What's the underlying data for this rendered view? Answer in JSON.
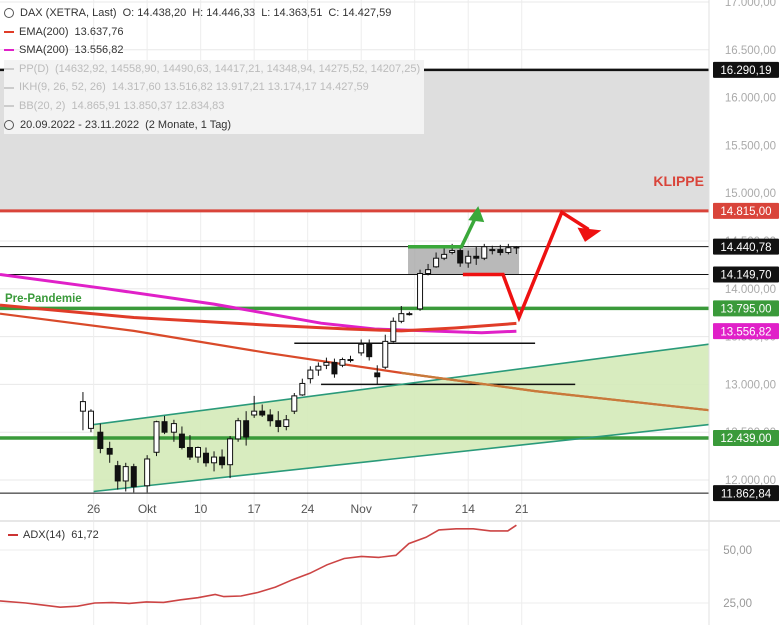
{
  "header": {
    "instrument": "DAX (XETRA, Last)",
    "open": "O: 14.438,20",
    "high": "H: 14.446,33",
    "low": "L: 14.363,51",
    "close": "C: 14.427,59"
  },
  "legend": [
    {
      "label": "EMA(200)",
      "value": "13.637,76",
      "color": "#e03c28",
      "faded": false
    },
    {
      "label": "SMA(200)",
      "value": "13.556,82",
      "color": "#e020c8",
      "faded": false
    },
    {
      "label": "PP(D)",
      "value": "(14632,92, 14558,90, 14490,63, 14417,21, 14348,94, 14275,52, 14207,25)",
      "color": "#cfcfcf",
      "faded": true
    },
    {
      "label": "IKH(9, 26, 52, 26)",
      "value": "14.317,60  13.516,82  13.917,21  13.174,17  14.427,59",
      "color": "#cfcfcf",
      "faded": true
    },
    {
      "label": "BB(20, 2)",
      "value": "14.865,91  13.850,37  12.834,83",
      "color": "#cfcfcf",
      "faded": true
    }
  ],
  "period": {
    "range": "20.09.2022 - 23.11.2022",
    "duration": "(2 Monate, 1 Tag)"
  },
  "annotations": {
    "klippe": "KLIPPE",
    "pre_pandemie": "Pre-Pandemie"
  },
  "sub_legend": {
    "label": "ADX(14)",
    "value": "61,72",
    "color": "#cc3333"
  },
  "chart_data": [
    {
      "type": "candlestick",
      "title": "DAX (XETRA, Last)",
      "y_ticks": [
        "17.000,00",
        "16.500,00",
        "16.000,00",
        "15.500,00",
        "15.000,00",
        "14.500,00",
        "14.000,00",
        "13.500,00",
        "13.000,00",
        "12.500,00",
        "12.000,00"
      ],
      "y_tick_values": [
        17000,
        16500,
        16000,
        15500,
        15000,
        14500,
        14000,
        13500,
        13000,
        12500,
        12000
      ],
      "ylim": [
        11800,
        17000
      ],
      "x_ticks": [
        "26",
        "Okt",
        "10",
        "17",
        "24",
        "Nov",
        "7",
        "14",
        "21"
      ],
      "x_tick_days": [
        7,
        11,
        15,
        19,
        23,
        27,
        31,
        35,
        39
      ],
      "xlim": [
        0,
        53
      ],
      "price_badges": [
        {
          "label": "16.290,19",
          "value": 16290.19,
          "bg": "#111111"
        },
        {
          "label": "14.815,00",
          "value": 14815,
          "bg": "#d9443a"
        },
        {
          "label": "14.440,78",
          "value": 14440.78,
          "bg": "#111111"
        },
        {
          "label": "14.149,70",
          "value": 14149.7,
          "bg": "#111111"
        },
        {
          "label": "13.795,00",
          "value": 13795,
          "bg": "#3a9a3a"
        },
        {
          "label": "13.556,82",
          "value": 13556.82,
          "bg": "#e020c8"
        },
        {
          "label": "12.439,00",
          "value": 12439,
          "bg": "#3a9a3a"
        },
        {
          "label": "11.862,84",
          "value": 11862.84,
          "bg": "#111111"
        }
      ],
      "candles": [
        {
          "day": 6.2,
          "o": 12720,
          "h": 12920,
          "l": 12520,
          "c": 12820
        },
        {
          "day": 6.8,
          "o": 12540,
          "h": 12740,
          "l": 12500,
          "c": 12720
        },
        {
          "day": 7.5,
          "o": 12500,
          "h": 12590,
          "l": 12280,
          "c": 12330
        },
        {
          "day": 8.2,
          "o": 12330,
          "h": 12400,
          "l": 12180,
          "c": 12270
        },
        {
          "day": 8.8,
          "o": 12150,
          "h": 12200,
          "l": 11900,
          "c": 11990
        },
        {
          "day": 9.4,
          "o": 11990,
          "h": 12180,
          "l": 11880,
          "c": 12140
        },
        {
          "day": 10.0,
          "o": 12140,
          "h": 12170,
          "l": 11870,
          "c": 11930
        },
        {
          "day": 11.0,
          "o": 11940,
          "h": 12260,
          "l": 11870,
          "c": 12220
        },
        {
          "day": 11.7,
          "o": 12290,
          "h": 12620,
          "l": 12250,
          "c": 12610
        },
        {
          "day": 12.3,
          "o": 12610,
          "h": 12670,
          "l": 12480,
          "c": 12500
        },
        {
          "day": 13.0,
          "o": 12500,
          "h": 12630,
          "l": 12400,
          "c": 12590
        },
        {
          "day": 13.6,
          "o": 12480,
          "h": 12560,
          "l": 12320,
          "c": 12340
        },
        {
          "day": 14.2,
          "o": 12340,
          "h": 12470,
          "l": 12210,
          "c": 12240
        },
        {
          "day": 14.8,
          "o": 12240,
          "h": 12350,
          "l": 12180,
          "c": 12340
        },
        {
          "day": 15.4,
          "o": 12280,
          "h": 12340,
          "l": 12140,
          "c": 12180
        },
        {
          "day": 16.0,
          "o": 12180,
          "h": 12300,
          "l": 12090,
          "c": 12240
        },
        {
          "day": 16.6,
          "o": 12240,
          "h": 12320,
          "l": 12120,
          "c": 12160
        },
        {
          "day": 17.2,
          "o": 12160,
          "h": 12460,
          "l": 12020,
          "c": 12430
        },
        {
          "day": 17.8,
          "o": 12430,
          "h": 12650,
          "l": 12400,
          "c": 12620
        },
        {
          "day": 18.4,
          "o": 12620,
          "h": 12720,
          "l": 12360,
          "c": 12450
        },
        {
          "day": 19.0,
          "o": 12680,
          "h": 12880,
          "l": 12650,
          "c": 12720
        },
        {
          "day": 19.6,
          "o": 12720,
          "h": 12790,
          "l": 12660,
          "c": 12680
        },
        {
          "day": 20.2,
          "o": 12680,
          "h": 12740,
          "l": 12560,
          "c": 12620
        },
        {
          "day": 20.8,
          "o": 12620,
          "h": 12720,
          "l": 12500,
          "c": 12560
        },
        {
          "day": 21.4,
          "o": 12560,
          "h": 12680,
          "l": 12520,
          "c": 12630
        },
        {
          "day": 22.0,
          "o": 12720,
          "h": 12910,
          "l": 12690,
          "c": 12880
        },
        {
          "day": 22.6,
          "o": 12890,
          "h": 13060,
          "l": 12880,
          "c": 13010
        },
        {
          "day": 23.2,
          "o": 13060,
          "h": 13190,
          "l": 13010,
          "c": 13150
        },
        {
          "day": 23.8,
          "o": 13150,
          "h": 13230,
          "l": 13090,
          "c": 13190
        },
        {
          "day": 24.4,
          "o": 13200,
          "h": 13280,
          "l": 13160,
          "c": 13230
        },
        {
          "day": 25.0,
          "o": 13230,
          "h": 13270,
          "l": 13070,
          "c": 13110
        },
        {
          "day": 25.6,
          "o": 13200,
          "h": 13280,
          "l": 13180,
          "c": 13260
        },
        {
          "day": 26.2,
          "o": 13260,
          "h": 13300,
          "l": 13230,
          "c": 13260
        },
        {
          "day": 27.0,
          "o": 13330,
          "h": 13470,
          "l": 13300,
          "c": 13420
        },
        {
          "day": 27.6,
          "o": 13420,
          "h": 13470,
          "l": 13250,
          "c": 13290
        },
        {
          "day": 28.2,
          "o": 13120,
          "h": 13200,
          "l": 13000,
          "c": 13080
        },
        {
          "day": 28.8,
          "o": 13180,
          "h": 13520,
          "l": 13160,
          "c": 13450
        },
        {
          "day": 29.4,
          "o": 13450,
          "h": 13700,
          "l": 13440,
          "c": 13660
        },
        {
          "day": 30.0,
          "o": 13660,
          "h": 13820,
          "l": 13640,
          "c": 13740
        },
        {
          "day": 30.6,
          "o": 13740,
          "h": 13760,
          "l": 13720,
          "c": 13740
        },
        {
          "day": 31.4,
          "o": 13790,
          "h": 14200,
          "l": 13770,
          "c": 14160
        },
        {
          "day": 32.0,
          "o": 14160,
          "h": 14260,
          "l": 14140,
          "c": 14200
        },
        {
          "day": 32.6,
          "o": 14230,
          "h": 14380,
          "l": 14220,
          "c": 14320
        },
        {
          "day": 33.2,
          "o": 14320,
          "h": 14440,
          "l": 14300,
          "c": 14360
        },
        {
          "day": 33.8,
          "o": 14380,
          "h": 14470,
          "l": 14360,
          "c": 14400
        },
        {
          "day": 34.4,
          "o": 14400,
          "h": 14440,
          "l": 14230,
          "c": 14270
        },
        {
          "day": 35.0,
          "o": 14270,
          "h": 14400,
          "l": 14220,
          "c": 14340
        },
        {
          "day": 35.6,
          "o": 14340,
          "h": 14440,
          "l": 14250,
          "c": 14320
        },
        {
          "day": 36.2,
          "o": 14320,
          "h": 14470,
          "l": 14300,
          "c": 14440
        },
        {
          "day": 36.8,
          "o": 14410,
          "h": 14450,
          "l": 14360,
          "c": 14410
        },
        {
          "day": 37.4,
          "o": 14410,
          "h": 14460,
          "l": 14350,
          "c": 14380
        },
        {
          "day": 38.0,
          "o": 14380,
          "h": 14470,
          "l": 14360,
          "c": 14430
        },
        {
          "day": 38.6,
          "o": 14438,
          "h": 14446,
          "l": 14364,
          "c": 14428
        }
      ],
      "ema200": [
        [
          0,
          13830
        ],
        [
          10,
          13700
        ],
        [
          20,
          13620
        ],
        [
          26,
          13580
        ],
        [
          30,
          13560
        ],
        [
          34,
          13590
        ],
        [
          38.6,
          13637.76
        ]
      ],
      "sma200": [
        [
          0,
          14150
        ],
        [
          8,
          14000
        ],
        [
          16,
          13840
        ],
        [
          24,
          13640
        ],
        [
          28,
          13580
        ],
        [
          32,
          13560
        ],
        [
          36,
          13540
        ],
        [
          38.6,
          13556.82
        ]
      ],
      "downtrend": [
        [
          0,
          13740
        ],
        [
          10,
          13560
        ],
        [
          20,
          13330
        ],
        [
          30,
          13120
        ],
        [
          40,
          12930
        ],
        [
          53,
          12730
        ]
      ],
      "channel_upper": [
        [
          7,
          12580
        ],
        [
          53,
          13420
        ]
      ],
      "channel_lower": [
        [
          7,
          11880
        ],
        [
          53,
          12580
        ]
      ],
      "horizontal_lines": [
        16290.19,
        14815,
        14440.78,
        14149.7,
        13795,
        12439,
        11862.84
      ],
      "short_lines": [
        [
          [
            22,
            13430
          ],
          [
            40,
            13430
          ]
        ],
        [
          [
            24,
            13000
          ],
          [
            43,
            13000
          ]
        ]
      ],
      "consolidation_box": [
        [
          30.5,
          14150
        ],
        [
          38.8,
          14430
        ]
      ],
      "resistance_zone": [
        16290.19,
        14815
      ],
      "scenario_green": [
        [
          30.5,
          14440
        ],
        [
          34.5,
          14440
        ],
        [
          35.6,
          14760
        ]
      ],
      "scenario_red": [
        [
          34.6,
          14150
        ],
        [
          37.6,
          14150
        ],
        [
          38.8,
          13700
        ],
        [
          42,
          14800
        ],
        [
          44,
          14620
        ]
      ]
    },
    {
      "type": "line",
      "title": "ADX(14)",
      "y_ticks": [
        "50,00",
        "25,00"
      ],
      "y_tick_values": [
        50,
        25
      ],
      "ylim": [
        19,
        62
      ],
      "series": [
        {
          "name": "ADX(14)",
          "values": [
            [
              0,
              26
            ],
            [
              3,
              25
            ],
            [
              5,
              24
            ],
            [
              7,
              23
            ],
            [
              9,
              23.5
            ],
            [
              11,
              25
            ],
            [
              13,
              25.2
            ],
            [
              15,
              24.8
            ],
            [
              17,
              25.5
            ],
            [
              19,
              25.3
            ],
            [
              21,
              26.5
            ],
            [
              23,
              27.5
            ],
            [
              25,
              29
            ],
            [
              26,
              28
            ],
            [
              28,
              28.3
            ],
            [
              30,
              30
            ],
            [
              32,
              32.5
            ],
            [
              34,
              36
            ],
            [
              36,
              39
            ],
            [
              38,
              43
            ],
            [
              40,
              46
            ],
            [
              42,
              47
            ],
            [
              44,
              46.5
            ],
            [
              46,
              47.5
            ],
            [
              47.5,
              53
            ],
            [
              49.5,
              56
            ],
            [
              51,
              59.5
            ],
            [
              53,
              60
            ],
            [
              55,
              60
            ],
            [
              57,
              59
            ],
            [
              59,
              59
            ],
            [
              60,
              61.72
            ]
          ]
        }
      ]
    }
  ]
}
